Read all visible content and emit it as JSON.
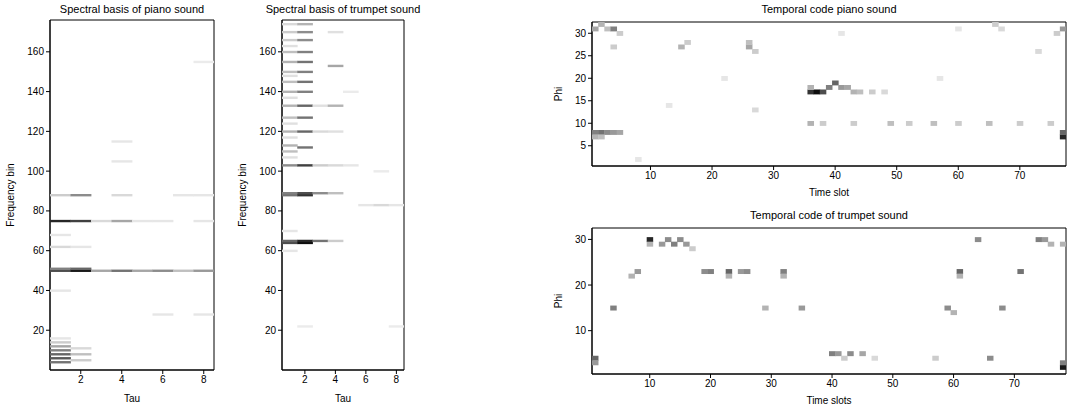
{
  "chart_data": [
    {
      "type": "heatmap",
      "title": "Spectral basis of piano sound",
      "x_label": "Tau",
      "y_label": "Frequency bin",
      "xlim": [
        0.5,
        8.5
      ],
      "ylim": [
        0,
        176
      ],
      "xticks": [
        2,
        4,
        6,
        8
      ],
      "yticks": [
        20,
        40,
        60,
        80,
        100,
        120,
        140,
        160
      ],
      "cells": [
        [
          1,
          4,
          0.55
        ],
        [
          1,
          6,
          0.65
        ],
        [
          1,
          8,
          0.6
        ],
        [
          1,
          10,
          0.5
        ],
        [
          1,
          12,
          0.35
        ],
        [
          1,
          14,
          0.2
        ],
        [
          1,
          16,
          0.1
        ],
        [
          1,
          40,
          0.1
        ],
        [
          1,
          50,
          0.7
        ],
        [
          1,
          51,
          0.5
        ],
        [
          1,
          62,
          0.15
        ],
        [
          1,
          68,
          0.1
        ],
        [
          1,
          75,
          0.85
        ],
        [
          1,
          88,
          0.2
        ],
        [
          2,
          5,
          0.2
        ],
        [
          2,
          8,
          0.25
        ],
        [
          2,
          11,
          0.15
        ],
        [
          2,
          50,
          0.9
        ],
        [
          2,
          51,
          0.6
        ],
        [
          2,
          62,
          0.1
        ],
        [
          2,
          75,
          0.75
        ],
        [
          2,
          88,
          0.45
        ],
        [
          3,
          50,
          0.35
        ],
        [
          3,
          75,
          0.15
        ],
        [
          4,
          50,
          0.55
        ],
        [
          4,
          75,
          0.35
        ],
        [
          4,
          88,
          0.15
        ],
        [
          4,
          105,
          0.1
        ],
        [
          4,
          115,
          0.1
        ],
        [
          5,
          50,
          0.35
        ],
        [
          5,
          75,
          0.1
        ],
        [
          6,
          28,
          0.1
        ],
        [
          6,
          50,
          0.45
        ],
        [
          6,
          75,
          0.1
        ],
        [
          7,
          50,
          0.25
        ],
        [
          7,
          88,
          0.1
        ],
        [
          8,
          28,
          0.1
        ],
        [
          8,
          50,
          0.4
        ],
        [
          8,
          75,
          0.1
        ],
        [
          8,
          88,
          0.1
        ],
        [
          8,
          155,
          0.08
        ]
      ]
    },
    {
      "type": "heatmap",
      "title": "Spectral basis of trumpet sound",
      "x_label": "Tau",
      "y_label": "Frequency bin",
      "xlim": [
        0.5,
        8.5
      ],
      "ylim": [
        0,
        176
      ],
      "xticks": [
        2,
        4,
        6,
        8
      ],
      "yticks": [
        20,
        40,
        60,
        80,
        100,
        120,
        140,
        160
      ],
      "cells": [
        [
          1,
          60,
          0.1
        ],
        [
          1,
          64,
          0.7
        ],
        [
          1,
          65,
          0.6
        ],
        [
          1,
          70,
          0.1
        ],
        [
          1,
          88,
          0.55
        ],
        [
          1,
          89,
          0.5
        ],
        [
          1,
          103,
          0.45
        ],
        [
          1,
          107,
          0.12
        ],
        [
          1,
          110,
          0.25
        ],
        [
          1,
          113,
          0.3
        ],
        [
          1,
          117,
          0.12
        ],
        [
          1,
          120,
          0.3
        ],
        [
          1,
          124,
          0.12
        ],
        [
          1,
          127,
          0.25
        ],
        [
          1,
          133,
          0.3
        ],
        [
          1,
          137,
          0.12
        ],
        [
          1,
          140,
          0.3
        ],
        [
          1,
          145,
          0.25
        ],
        [
          1,
          148,
          0.12
        ],
        [
          1,
          150,
          0.25
        ],
        [
          1,
          155,
          0.3
        ],
        [
          1,
          160,
          0.25
        ],
        [
          1,
          163,
          0.12
        ],
        [
          1,
          166,
          0.2
        ],
        [
          1,
          170,
          0.2
        ],
        [
          1,
          174,
          0.15
        ],
        [
          2,
          22,
          0.08
        ],
        [
          2,
          64,
          0.95
        ],
        [
          2,
          65,
          0.85
        ],
        [
          2,
          88,
          0.8
        ],
        [
          2,
          89,
          0.7
        ],
        [
          2,
          103,
          0.75
        ],
        [
          2,
          112,
          0.55
        ],
        [
          2,
          120,
          0.6
        ],
        [
          2,
          127,
          0.55
        ],
        [
          2,
          133,
          0.6
        ],
        [
          2,
          140,
          0.5
        ],
        [
          2,
          145,
          0.55
        ],
        [
          2,
          150,
          0.5
        ],
        [
          2,
          155,
          0.55
        ],
        [
          2,
          160,
          0.5
        ],
        [
          2,
          166,
          0.45
        ],
        [
          2,
          170,
          0.45
        ],
        [
          2,
          174,
          0.3
        ],
        [
          3,
          65,
          0.55
        ],
        [
          3,
          89,
          0.45
        ],
        [
          3,
          103,
          0.2
        ],
        [
          3,
          120,
          0.15
        ],
        [
          3,
          133,
          0.12
        ],
        [
          4,
          65,
          0.2
        ],
        [
          4,
          89,
          0.25
        ],
        [
          4,
          103,
          0.15
        ],
        [
          4,
          120,
          0.12
        ],
        [
          4,
          133,
          0.3
        ],
        [
          4,
          153,
          0.35
        ],
        [
          4,
          170,
          0.12
        ],
        [
          5,
          103,
          0.1
        ],
        [
          5,
          140,
          0.08
        ],
        [
          6,
          83,
          0.1
        ],
        [
          7,
          83,
          0.15
        ],
        [
          7,
          100,
          0.08
        ],
        [
          8,
          22,
          0.08
        ],
        [
          8,
          83,
          0.1
        ]
      ]
    },
    {
      "type": "heatmap",
      "title": "Temporal code piano sound",
      "x_label": "Time slot",
      "y_label": "Phi",
      "xlim": [
        0.5,
        77.5
      ],
      "ylim": [
        0.5,
        32.5
      ],
      "xticks": [
        10,
        20,
        30,
        40,
        50,
        60,
        70
      ],
      "yticks": [
        5,
        10,
        15,
        20,
        25,
        30
      ],
      "cells": [
        [
          1,
          8,
          0.5
        ],
        [
          2,
          8,
          0.55
        ],
        [
          3,
          8,
          0.45
        ],
        [
          4,
          8,
          0.4
        ],
        [
          5,
          8,
          0.35
        ],
        [
          1,
          7,
          0.3
        ],
        [
          2,
          7,
          0.25
        ],
        [
          1,
          31,
          0.35
        ],
        [
          2,
          32,
          0.3
        ],
        [
          3,
          31,
          0.25
        ],
        [
          4,
          31,
          0.5
        ],
        [
          5,
          30,
          0.2
        ],
        [
          4,
          27,
          0.2
        ],
        [
          8,
          2,
          0.1
        ],
        [
          15,
          27,
          0.3
        ],
        [
          16,
          28,
          0.2
        ],
        [
          26,
          27,
          0.35
        ],
        [
          26,
          28,
          0.25
        ],
        [
          27,
          26,
          0.2
        ],
        [
          13,
          14,
          0.1
        ],
        [
          22,
          20,
          0.1
        ],
        [
          27,
          13,
          0.15
        ],
        [
          36,
          17,
          0.8
        ],
        [
          37,
          17,
          0.95
        ],
        [
          38,
          17,
          0.7
        ],
        [
          39,
          18,
          0.5
        ],
        [
          40,
          19,
          0.6
        ],
        [
          41,
          18,
          0.4
        ],
        [
          42,
          18,
          0.35
        ],
        [
          43,
          17,
          0.3
        ],
        [
          44,
          17,
          0.25
        ],
        [
          46,
          17,
          0.2
        ],
        [
          48,
          17,
          0.15
        ],
        [
          36,
          18,
          0.3
        ],
        [
          36,
          10,
          0.3
        ],
        [
          38,
          10,
          0.2
        ],
        [
          43,
          10,
          0.2
        ],
        [
          49,
          10,
          0.25
        ],
        [
          52,
          10,
          0.2
        ],
        [
          56,
          10,
          0.25
        ],
        [
          60,
          10,
          0.2
        ],
        [
          65,
          10,
          0.25
        ],
        [
          70,
          10,
          0.2
        ],
        [
          75,
          10,
          0.2
        ],
        [
          41,
          30,
          0.1
        ],
        [
          60,
          31,
          0.1
        ],
        [
          66,
          32,
          0.2
        ],
        [
          67,
          31,
          0.15
        ],
        [
          73,
          26,
          0.15
        ],
        [
          57,
          20,
          0.1
        ],
        [
          77,
          7,
          0.85
        ],
        [
          77,
          8,
          0.6
        ],
        [
          77,
          31,
          0.4
        ],
        [
          76,
          30,
          0.2
        ]
      ]
    },
    {
      "type": "heatmap",
      "title": "Temporal code of trumpet sound",
      "x_label": "Time slots",
      "y_label": "Phi",
      "xlim": [
        0.5,
        78.5
      ],
      "ylim": [
        0.5,
        32.5
      ],
      "xticks": [
        10,
        20,
        30,
        40,
        50,
        60,
        70
      ],
      "yticks": [
        10,
        20,
        30
      ],
      "cells": [
        [
          1,
          4,
          0.6
        ],
        [
          1,
          3,
          0.4
        ],
        [
          4,
          15,
          0.5
        ],
        [
          7,
          22,
          0.3
        ],
        [
          8,
          23,
          0.4
        ],
        [
          10,
          30,
          0.85
        ],
        [
          10,
          29,
          0.3
        ],
        [
          12,
          29,
          0.4
        ],
        [
          13,
          30,
          0.45
        ],
        [
          14,
          29,
          0.5
        ],
        [
          15,
          30,
          0.45
        ],
        [
          16,
          29,
          0.4
        ],
        [
          17,
          28,
          0.2
        ],
        [
          19,
          23,
          0.45
        ],
        [
          20,
          23,
          0.5
        ],
        [
          23,
          23,
          0.6
        ],
        [
          23,
          22,
          0.3
        ],
        [
          25,
          23,
          0.4
        ],
        [
          26,
          23,
          0.45
        ],
        [
          29,
          15,
          0.3
        ],
        [
          32,
          23,
          0.5
        ],
        [
          32,
          22,
          0.3
        ],
        [
          35,
          15,
          0.4
        ],
        [
          40,
          5,
          0.5
        ],
        [
          41,
          5,
          0.4
        ],
        [
          43,
          5,
          0.45
        ],
        [
          45,
          5,
          0.35
        ],
        [
          42,
          4,
          0.2
        ],
        [
          47,
          4,
          0.15
        ],
        [
          57,
          4,
          0.2
        ],
        [
          59,
          15,
          0.45
        ],
        [
          60,
          14,
          0.3
        ],
        [
          61,
          23,
          0.6
        ],
        [
          61,
          22,
          0.3
        ],
        [
          64,
          30,
          0.45
        ],
        [
          66,
          4,
          0.45
        ],
        [
          68,
          15,
          0.45
        ],
        [
          71,
          23,
          0.55
        ],
        [
          74,
          30,
          0.5
        ],
        [
          75,
          30,
          0.4
        ],
        [
          76,
          29,
          0.3
        ],
        [
          78,
          2,
          0.9
        ],
        [
          78,
          3,
          0.5
        ],
        [
          78,
          29,
          0.3
        ]
      ]
    }
  ]
}
